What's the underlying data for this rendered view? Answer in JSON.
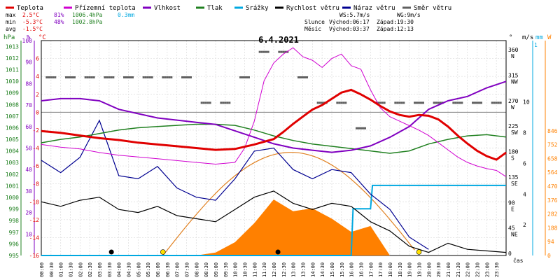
{
  "legend": {
    "items": [
      {
        "label": "Teplota",
        "color": "#e00000"
      },
      {
        "label": "Přízemní teplota",
        "color": "#d000d0"
      },
      {
        "label": "Vlhkost",
        "color": "#8000c0"
      },
      {
        "label": "Tlak",
        "color": "#208020"
      },
      {
        "label": "Srážky",
        "color": "#00a8e0"
      },
      {
        "label": "Rychlost větru",
        "color": "#000000"
      },
      {
        "label": "Náraz větru",
        "color": "#000090"
      },
      {
        "label": "Směr větru",
        "color": "#606060"
      }
    ]
  },
  "stats": {
    "max": {
      "label": "max",
      "temp": "2.5°C",
      "hum": "81%",
      "press": "1006.4hPa",
      "rain": "0.3mm"
    },
    "min": {
      "label": "min",
      "temp": "-5.3°C",
      "hum": "48%",
      "press": "1002.8hPa"
    },
    "avg": {
      "label": "avg",
      "temp": "-1.5°C"
    }
  },
  "wind_info": {
    "ws": "WS:5.7m/s",
    "wg": "WG:9m/s"
  },
  "sun": {
    "label": "Slunce",
    "rise": "Východ:06:17",
    "set": "Západ:19:30"
  },
  "moon": {
    "label": "Měsíc",
    "rise": "Východ:03:37",
    "set": "Západ:12:13"
  },
  "date": "6.4.2021",
  "axis_headers": {
    "hpa": "hPa",
    "pct": "%",
    "degc": "°C",
    "deg": "°",
    "ms": "m/s",
    "mm": "mm",
    "w": "W"
  },
  "x_axis_label": "čas",
  "colors": {
    "temp": "#e00000",
    "dew": "#d000d0",
    "hum": "#8000c0",
    "press": "#208020",
    "rain": "#00a8e0",
    "wind": "#000000",
    "gust": "#000090",
    "dir": "#606060",
    "solar": "#ff8000",
    "sunarc": "#e08020"
  },
  "chart_data": {
    "type": "line",
    "x_ticks": [
      "00:00",
      "00:30",
      "01:00",
      "01:30",
      "02:00",
      "02:30",
      "03:00",
      "03:30",
      "04:00",
      "04:30",
      "05:00",
      "05:30",
      "06:00",
      "06:30",
      "07:00",
      "07:30",
      "08:00",
      "08:30",
      "09:00",
      "09:30",
      "10:00",
      "10:30",
      "11:00",
      "11:30",
      "12:00",
      "12:30",
      "13:00",
      "13:30",
      "14:00",
      "14:30",
      "15:00",
      "15:30",
      "16:00",
      "16:30",
      "17:00",
      "17:30",
      "18:00",
      "18:30",
      "19:00",
      "19:30",
      "20:00",
      "20:30",
      "21:00",
      "21:30",
      "22:00",
      "22:30",
      "23:00",
      "23:30"
    ],
    "y_pressure_ticks": [
      "1013",
      "1012",
      "1011",
      "1010",
      "1009",
      "1008",
      "1007",
      "1006",
      "1005",
      "1004",
      "1003",
      "1002",
      "1001",
      "1000",
      "999",
      "998",
      "997",
      "996",
      "995"
    ],
    "y_humidity_ticks": [
      "100",
      "90",
      "80",
      "70",
      "60",
      "50",
      "40",
      "30",
      "20",
      "10"
    ],
    "y_temp_ticks": [
      "6",
      "4",
      "2",
      "0",
      "-2",
      "-4",
      "-6",
      "-8",
      "-10",
      "-12",
      "-14",
      "-16"
    ],
    "y_dir_ticks": [
      {
        "v": "360",
        "l": "N"
      },
      {
        "v": "315",
        "l": "NW"
      },
      {
        "v": "270",
        "l": "W"
      },
      {
        "v": "225",
        "l": "SW"
      },
      {
        "v": "180",
        "l": "S"
      },
      {
        "v": "135",
        "l": "SE"
      },
      {
        "v": "90",
        "l": "E"
      },
      {
        "v": "45",
        "l": "NE"
      },
      {
        "v": "0",
        "l": ""
      }
    ],
    "y_ms_ticks": [
      "10",
      "8",
      "6",
      "4",
      "2"
    ],
    "y_mm_ticks": [
      "1"
    ],
    "y_solar_ticks": [
      "846",
      "752",
      "658",
      "564",
      "470",
      "376",
      "282",
      "188",
      "94",
      "0"
    ],
    "temp_range": [
      -16,
      8
    ],
    "hum_range": [
      0,
      100
    ],
    "press_range": [
      995,
      1013.5
    ],
    "dir_range": [
      0,
      380
    ],
    "ms_range": [
      0,
      14
    ],
    "solar_range": [
      0,
      900
    ],
    "series": [
      {
        "name": "Teplota",
        "unit": "°C",
        "x": [
          0,
          1,
          2,
          3,
          4,
          5,
          6,
          7,
          8,
          9,
          10,
          11,
          12,
          12.5,
          13,
          13.5,
          14,
          14.5,
          15,
          15.5,
          16,
          16.5,
          17,
          17.5,
          18,
          18.5,
          19,
          19.5,
          20,
          20.5,
          21,
          21.5,
          22,
          22.5,
          23,
          23.5,
          24
        ],
        "y": [
          -2.1,
          -2.3,
          -2.6,
          -2.9,
          -3.1,
          -3.4,
          -3.6,
          -3.8,
          -4.0,
          -4.2,
          -4.1,
          -3.6,
          -3.0,
          -2.2,
          -1.3,
          -0.5,
          0.3,
          0.8,
          1.5,
          2.2,
          2.5,
          2.0,
          1.4,
          0.7,
          0.1,
          -0.3,
          -0.5,
          -0.3,
          -0.4,
          -0.8,
          -1.6,
          -2.6,
          -3.5,
          -4.3,
          -4.9,
          -5.3,
          -4.5
        ]
      },
      {
        "name": "Přízemní teplota",
        "unit": "°C",
        "x": [
          0,
          1,
          2,
          3,
          4,
          5,
          6,
          7,
          8,
          9,
          10,
          10.5,
          11,
          11.5,
          12,
          12.5,
          13,
          13.5,
          14,
          14.5,
          15,
          15.5,
          16,
          16.5,
          17,
          17.5,
          18,
          18.5,
          19,
          19.5,
          20,
          20.5,
          21,
          21.5,
          22,
          22.5,
          23,
          23.5,
          24
        ],
        "y": [
          -3.6,
          -3.9,
          -4.1,
          -4.5,
          -4.8,
          -5.0,
          -5.2,
          -5.4,
          -5.6,
          -5.8,
          -5.6,
          -4.0,
          -1.0,
          3.5,
          5.5,
          6.5,
          7.2,
          6.2,
          5.8,
          5.0,
          6.0,
          6.5,
          5.2,
          4.8,
          2.5,
          0.5,
          -0.5,
          -1.0,
          -1.5,
          -2.0,
          -2.6,
          -3.4,
          -4.2,
          -5.0,
          -5.6,
          -6.0,
          -6.3,
          -6.5,
          -7.2
        ]
      },
      {
        "name": "Vlhkost",
        "unit": "%",
        "x": [
          0,
          1,
          2,
          3,
          4,
          5,
          6,
          7,
          8,
          9,
          10,
          11,
          12,
          13,
          14,
          15,
          16,
          17,
          18,
          19,
          20,
          21,
          22,
          23,
          24
        ],
        "y": [
          72,
          73,
          73,
          72,
          68,
          66,
          64,
          63,
          62,
          61,
          58,
          55,
          52,
          50,
          49,
          48,
          49,
          51,
          55,
          60,
          68,
          72,
          74,
          78,
          81
        ]
      },
      {
        "name": "Tlak",
        "unit": "hPa",
        "x": [
          0,
          1,
          2,
          3,
          4,
          5,
          6,
          7,
          8,
          9,
          10,
          11,
          12,
          13,
          14,
          15,
          16,
          17,
          18,
          19,
          20,
          21,
          22,
          23,
          24
        ],
        "y": [
          1004.7,
          1005.0,
          1005.2,
          1005.5,
          1005.8,
          1006.0,
          1006.1,
          1006.2,
          1006.3,
          1006.3,
          1006.2,
          1005.8,
          1005.3,
          1004.9,
          1004.6,
          1004.4,
          1004.2,
          1004.0,
          1003.8,
          1004.0,
          1004.6,
          1005.0,
          1005.3,
          1005.4,
          1005.2
        ]
      },
      {
        "name": "Srážky",
        "unit": "mm",
        "x": [
          0,
          16,
          16.1,
          17,
          17.1,
          24
        ],
        "y": [
          0,
          0,
          0.2,
          0.2,
          0.3,
          0.3
        ]
      },
      {
        "name": "Rychlost větru",
        "unit": "m/s",
        "x": [
          0,
          1,
          2,
          3,
          4,
          5,
          6,
          7,
          8,
          9,
          10,
          11,
          12,
          13,
          14,
          15,
          16,
          17,
          18,
          19,
          20,
          21,
          22,
          23,
          24
        ],
        "y": [
          3.5,
          3.2,
          3.6,
          3.8,
          3.0,
          2.8,
          3.2,
          2.6,
          2.4,
          2.2,
          3.0,
          3.8,
          4.2,
          3.4,
          3.0,
          3.4,
          3.2,
          2.2,
          1.6,
          0.6,
          0.2,
          0.8,
          0.4,
          0.3,
          0.2
        ]
      },
      {
        "name": "Náraz větru",
        "unit": "m/s",
        "x": [
          0,
          1,
          2,
          3,
          4,
          5,
          6,
          7,
          8,
          9,
          10,
          11,
          12,
          13,
          14,
          15,
          16,
          17,
          18,
          19,
          20
        ],
        "y": [
          6.2,
          5.4,
          6.4,
          8.8,
          5.2,
          5.0,
          5.8,
          4.4,
          3.8,
          3.6,
          5.0,
          6.8,
          7.0,
          5.6,
          5.0,
          5.6,
          5.4,
          4.0,
          3.0,
          1.2,
          0.4
        ]
      },
      {
        "name": "Solar",
        "unit": "W",
        "x": [
          8,
          9,
          10,
          11,
          12,
          13,
          14,
          15,
          16,
          17,
          18
        ],
        "y": [
          0,
          20,
          90,
          220,
          380,
          300,
          320,
          250,
          160,
          200,
          0
        ]
      }
    ],
    "wind_dir": {
      "x": [
        0.5,
        1.5,
        2.5,
        3.5,
        4.5,
        5.5,
        6.5,
        7.5,
        8.5,
        9.5,
        10.5,
        11.5,
        12.5,
        13.5,
        14.5,
        15.5,
        16.5,
        17.5,
        18.5,
        19.5,
        20.5,
        21.5,
        22.5,
        23.5
      ],
      "y": [
        315,
        315,
        315,
        315,
        315,
        315,
        315,
        315,
        270,
        270,
        315,
        360,
        360,
        315,
        270,
        270,
        225,
        270,
        270,
        270,
        270,
        270,
        270,
        270
      ]
    }
  }
}
